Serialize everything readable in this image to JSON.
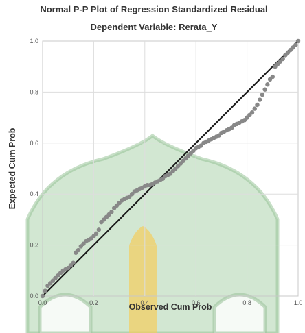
{
  "chart_data": {
    "type": "scatter",
    "title": "Normal P-P Plot of Regression Standardized Residual",
    "subtitle": "Dependent Variable: Rerata_Y",
    "xlabel": "Observed Cum Prob",
    "ylabel": "Expected Cum Prob",
    "xlim": [
      0,
      1
    ],
    "ylim": [
      0,
      1
    ],
    "xticks": [
      "0.0",
      "0.2",
      "0.4",
      "0.6",
      "0.8",
      "1.0"
    ],
    "yticks": [
      "0.0",
      "0.2",
      "0.4",
      "0.6",
      "0.8",
      "1.0"
    ],
    "grid": true,
    "reference_line": [
      [
        0,
        0
      ],
      [
        1,
        1
      ]
    ],
    "colors": {
      "points": "#888888",
      "reference_line": "#1a1a1a",
      "grid": "#dddddd",
      "frame": "#c8c8c8",
      "watermark": "#a5cfa5",
      "watermark_accent": "#f3cd5c"
    },
    "series": [
      {
        "values": [
          [
            0.0,
            0.0
          ],
          [
            0.01,
            0.02
          ],
          [
            0.02,
            0.04
          ],
          [
            0.03,
            0.05
          ],
          [
            0.04,
            0.06
          ],
          [
            0.05,
            0.07
          ],
          [
            0.06,
            0.08
          ],
          [
            0.07,
            0.09
          ],
          [
            0.08,
            0.1
          ],
          [
            0.09,
            0.105
          ],
          [
            0.1,
            0.11
          ],
          [
            0.11,
            0.12
          ],
          [
            0.12,
            0.13
          ],
          [
            0.13,
            0.17
          ],
          [
            0.14,
            0.18
          ],
          [
            0.15,
            0.195
          ],
          [
            0.16,
            0.205
          ],
          [
            0.17,
            0.215
          ],
          [
            0.18,
            0.22
          ],
          [
            0.19,
            0.225
          ],
          [
            0.2,
            0.235
          ],
          [
            0.21,
            0.245
          ],
          [
            0.22,
            0.26
          ],
          [
            0.23,
            0.29
          ],
          [
            0.24,
            0.3
          ],
          [
            0.25,
            0.31
          ],
          [
            0.26,
            0.32
          ],
          [
            0.27,
            0.33
          ],
          [
            0.28,
            0.345
          ],
          [
            0.29,
            0.355
          ],
          [
            0.3,
            0.365
          ],
          [
            0.31,
            0.375
          ],
          [
            0.32,
            0.38
          ],
          [
            0.33,
            0.385
          ],
          [
            0.34,
            0.39
          ],
          [
            0.35,
            0.4
          ],
          [
            0.36,
            0.41
          ],
          [
            0.37,
            0.415
          ],
          [
            0.38,
            0.42
          ],
          [
            0.39,
            0.425
          ],
          [
            0.4,
            0.43
          ],
          [
            0.41,
            0.435
          ],
          [
            0.42,
            0.435
          ],
          [
            0.43,
            0.44
          ],
          [
            0.44,
            0.445
          ],
          [
            0.45,
            0.45
          ],
          [
            0.46,
            0.455
          ],
          [
            0.47,
            0.46
          ],
          [
            0.48,
            0.47
          ],
          [
            0.49,
            0.475
          ],
          [
            0.5,
            0.48
          ],
          [
            0.51,
            0.49
          ],
          [
            0.52,
            0.5
          ],
          [
            0.53,
            0.51
          ],
          [
            0.54,
            0.52
          ],
          [
            0.55,
            0.53
          ],
          [
            0.56,
            0.54
          ],
          [
            0.57,
            0.55
          ],
          [
            0.58,
            0.56
          ],
          [
            0.59,
            0.57
          ],
          [
            0.6,
            0.58
          ],
          [
            0.61,
            0.585
          ],
          [
            0.62,
            0.59
          ],
          [
            0.63,
            0.6
          ],
          [
            0.64,
            0.605
          ],
          [
            0.65,
            0.61
          ],
          [
            0.66,
            0.615
          ],
          [
            0.67,
            0.62
          ],
          [
            0.68,
            0.625
          ],
          [
            0.69,
            0.63
          ],
          [
            0.7,
            0.64
          ],
          [
            0.71,
            0.645
          ],
          [
            0.72,
            0.65
          ],
          [
            0.73,
            0.655
          ],
          [
            0.74,
            0.66
          ],
          [
            0.75,
            0.67
          ],
          [
            0.76,
            0.675
          ],
          [
            0.77,
            0.68
          ],
          [
            0.78,
            0.685
          ],
          [
            0.79,
            0.69
          ],
          [
            0.8,
            0.7
          ],
          [
            0.81,
            0.71
          ],
          [
            0.82,
            0.72
          ],
          [
            0.83,
            0.735
          ],
          [
            0.84,
            0.75
          ],
          [
            0.85,
            0.77
          ],
          [
            0.86,
            0.79
          ],
          [
            0.87,
            0.81
          ],
          [
            0.88,
            0.83
          ],
          [
            0.89,
            0.85
          ],
          [
            0.9,
            0.86
          ],
          [
            0.91,
            0.9
          ],
          [
            0.92,
            0.91
          ],
          [
            0.93,
            0.92
          ],
          [
            0.94,
            0.93
          ],
          [
            0.95,
            0.945
          ],
          [
            0.96,
            0.955
          ],
          [
            0.97,
            0.965
          ],
          [
            0.98,
            0.975
          ],
          [
            0.99,
            0.985
          ],
          [
            1.0,
            1.0
          ]
        ]
      }
    ]
  }
}
